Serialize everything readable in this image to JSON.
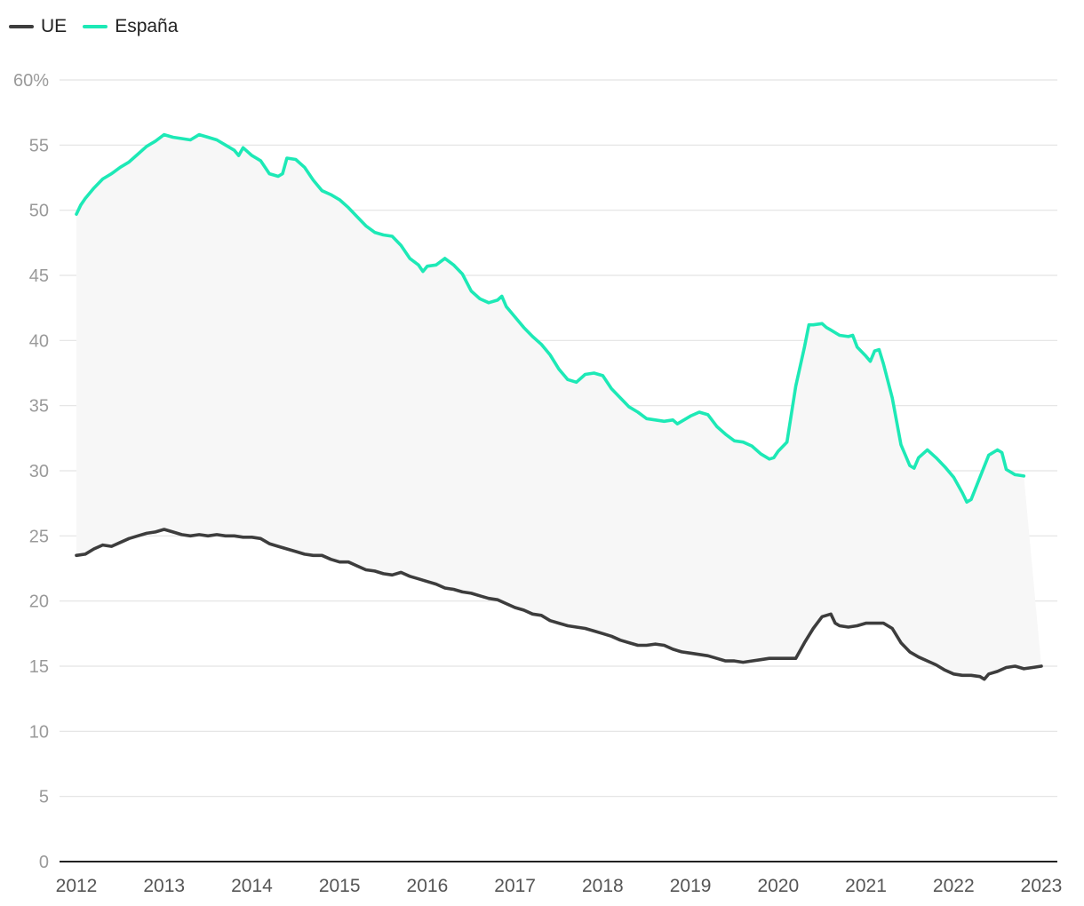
{
  "chart_data": {
    "type": "line",
    "title": "",
    "xlabel": "",
    "ylabel": "",
    "ylim": [
      0,
      60
    ],
    "xlim": [
      2012,
      2023
    ],
    "y_ticks": [
      0,
      5,
      10,
      15,
      20,
      25,
      30,
      35,
      40,
      45,
      50,
      55,
      60
    ],
    "y_tick_labels": [
      "0",
      "5",
      "10",
      "15",
      "20",
      "25",
      "30",
      "35",
      "40",
      "45",
      "50",
      "55",
      "60%"
    ],
    "x_ticks": [
      2012,
      2013,
      2014,
      2015,
      2016,
      2017,
      2018,
      2019,
      2020,
      2021,
      2022,
      2023
    ],
    "x_tick_labels": [
      "2012",
      "2013",
      "2014",
      "2015",
      "2016",
      "2017",
      "2018",
      "2019",
      "2020",
      "2021",
      "2022",
      "2023"
    ],
    "grid": true,
    "legend_position": "top-left",
    "fill_between_series": true,
    "fill_color": "#f7f7f7",
    "series": [
      {
        "name": "UE",
        "color": "#3d3d3d",
        "points": [
          [
            2012.0,
            23.5
          ],
          [
            2012.1,
            23.6
          ],
          [
            2012.2,
            24.0
          ],
          [
            2012.3,
            24.3
          ],
          [
            2012.4,
            24.2
          ],
          [
            2012.5,
            24.5
          ],
          [
            2012.6,
            24.8
          ],
          [
            2012.7,
            25.0
          ],
          [
            2012.8,
            25.2
          ],
          [
            2012.9,
            25.3
          ],
          [
            2013.0,
            25.5
          ],
          [
            2013.1,
            25.3
          ],
          [
            2013.2,
            25.1
          ],
          [
            2013.3,
            25.0
          ],
          [
            2013.4,
            25.1
          ],
          [
            2013.5,
            25.0
          ],
          [
            2013.6,
            25.1
          ],
          [
            2013.7,
            25.0
          ],
          [
            2013.8,
            25.0
          ],
          [
            2013.9,
            24.9
          ],
          [
            2014.0,
            24.9
          ],
          [
            2014.1,
            24.8
          ],
          [
            2014.2,
            24.4
          ],
          [
            2014.3,
            24.2
          ],
          [
            2014.4,
            24.0
          ],
          [
            2014.5,
            23.8
          ],
          [
            2014.6,
            23.6
          ],
          [
            2014.7,
            23.5
          ],
          [
            2014.8,
            23.5
          ],
          [
            2014.9,
            23.2
          ],
          [
            2015.0,
            23.0
          ],
          [
            2015.1,
            23.0
          ],
          [
            2015.2,
            22.7
          ],
          [
            2015.3,
            22.4
          ],
          [
            2015.4,
            22.3
          ],
          [
            2015.5,
            22.1
          ],
          [
            2015.6,
            22.0
          ],
          [
            2015.7,
            22.2
          ],
          [
            2015.8,
            21.9
          ],
          [
            2015.9,
            21.7
          ],
          [
            2016.0,
            21.5
          ],
          [
            2016.1,
            21.3
          ],
          [
            2016.2,
            21.0
          ],
          [
            2016.3,
            20.9
          ],
          [
            2016.4,
            20.7
          ],
          [
            2016.5,
            20.6
          ],
          [
            2016.6,
            20.4
          ],
          [
            2016.7,
            20.2
          ],
          [
            2016.8,
            20.1
          ],
          [
            2016.9,
            19.8
          ],
          [
            2017.0,
            19.5
          ],
          [
            2017.1,
            19.3
          ],
          [
            2017.2,
            19.0
          ],
          [
            2017.3,
            18.9
          ],
          [
            2017.4,
            18.5
          ],
          [
            2017.5,
            18.3
          ],
          [
            2017.6,
            18.1
          ],
          [
            2017.7,
            18.0
          ],
          [
            2017.8,
            17.9
          ],
          [
            2017.9,
            17.7
          ],
          [
            2018.0,
            17.5
          ],
          [
            2018.1,
            17.3
          ],
          [
            2018.2,
            17.0
          ],
          [
            2018.3,
            16.8
          ],
          [
            2018.4,
            16.6
          ],
          [
            2018.5,
            16.6
          ],
          [
            2018.6,
            16.7
          ],
          [
            2018.7,
            16.6
          ],
          [
            2018.8,
            16.3
          ],
          [
            2018.9,
            16.1
          ],
          [
            2019.0,
            16.0
          ],
          [
            2019.1,
            15.9
          ],
          [
            2019.2,
            15.8
          ],
          [
            2019.3,
            15.6
          ],
          [
            2019.4,
            15.4
          ],
          [
            2019.5,
            15.4
          ],
          [
            2019.6,
            15.3
          ],
          [
            2019.7,
            15.4
          ],
          [
            2019.8,
            15.5
          ],
          [
            2019.9,
            15.6
          ],
          [
            2020.0,
            15.6
          ],
          [
            2020.1,
            15.6
          ],
          [
            2020.2,
            15.6
          ],
          [
            2020.3,
            16.8
          ],
          [
            2020.4,
            17.9
          ],
          [
            2020.5,
            18.8
          ],
          [
            2020.6,
            19.0
          ],
          [
            2020.65,
            18.3
          ],
          [
            2020.7,
            18.1
          ],
          [
            2020.8,
            18.0
          ],
          [
            2020.9,
            18.1
          ],
          [
            2021.0,
            18.3
          ],
          [
            2021.1,
            18.3
          ],
          [
            2021.2,
            18.3
          ],
          [
            2021.3,
            17.9
          ],
          [
            2021.4,
            16.8
          ],
          [
            2021.5,
            16.1
          ],
          [
            2021.6,
            15.7
          ],
          [
            2021.7,
            15.4
          ],
          [
            2021.8,
            15.1
          ],
          [
            2021.9,
            14.7
          ],
          [
            2022.0,
            14.4
          ],
          [
            2022.1,
            14.3
          ],
          [
            2022.2,
            14.3
          ],
          [
            2022.3,
            14.2
          ],
          [
            2022.35,
            14.0
          ],
          [
            2022.4,
            14.4
          ],
          [
            2022.5,
            14.6
          ],
          [
            2022.6,
            14.9
          ],
          [
            2022.7,
            15.0
          ],
          [
            2022.8,
            14.8
          ],
          [
            2022.9,
            14.9
          ],
          [
            2023.0,
            15.0
          ]
        ]
      },
      {
        "name": "España",
        "color": "#1de9b6",
        "points": [
          [
            2012.0,
            49.7
          ],
          [
            2012.05,
            50.4
          ],
          [
            2012.1,
            50.9
          ],
          [
            2012.2,
            51.7
          ],
          [
            2012.3,
            52.4
          ],
          [
            2012.4,
            52.8
          ],
          [
            2012.5,
            53.3
          ],
          [
            2012.6,
            53.7
          ],
          [
            2012.7,
            54.3
          ],
          [
            2012.8,
            54.9
          ],
          [
            2012.9,
            55.3
          ],
          [
            2013.0,
            55.8
          ],
          [
            2013.1,
            55.6
          ],
          [
            2013.2,
            55.5
          ],
          [
            2013.3,
            55.4
          ],
          [
            2013.4,
            55.8
          ],
          [
            2013.5,
            55.6
          ],
          [
            2013.6,
            55.4
          ],
          [
            2013.7,
            55.0
          ],
          [
            2013.8,
            54.6
          ],
          [
            2013.85,
            54.2
          ],
          [
            2013.9,
            54.8
          ],
          [
            2014.0,
            54.2
          ],
          [
            2014.1,
            53.8
          ],
          [
            2014.2,
            52.8
          ],
          [
            2014.3,
            52.6
          ],
          [
            2014.35,
            52.8
          ],
          [
            2014.4,
            54.0
          ],
          [
            2014.5,
            53.9
          ],
          [
            2014.6,
            53.3
          ],
          [
            2014.7,
            52.3
          ],
          [
            2014.8,
            51.5
          ],
          [
            2014.9,
            51.2
          ],
          [
            2015.0,
            50.8
          ],
          [
            2015.1,
            50.2
          ],
          [
            2015.2,
            49.5
          ],
          [
            2015.3,
            48.8
          ],
          [
            2015.4,
            48.3
          ],
          [
            2015.5,
            48.1
          ],
          [
            2015.6,
            48.0
          ],
          [
            2015.7,
            47.3
          ],
          [
            2015.8,
            46.3
          ],
          [
            2015.9,
            45.8
          ],
          [
            2015.95,
            45.3
          ],
          [
            2016.0,
            45.7
          ],
          [
            2016.1,
            45.8
          ],
          [
            2016.2,
            46.3
          ],
          [
            2016.3,
            45.8
          ],
          [
            2016.4,
            45.1
          ],
          [
            2016.5,
            43.8
          ],
          [
            2016.6,
            43.2
          ],
          [
            2016.7,
            42.9
          ],
          [
            2016.8,
            43.1
          ],
          [
            2016.85,
            43.4
          ],
          [
            2016.9,
            42.6
          ],
          [
            2017.0,
            41.8
          ],
          [
            2017.1,
            41.0
          ],
          [
            2017.2,
            40.3
          ],
          [
            2017.3,
            39.7
          ],
          [
            2017.4,
            38.9
          ],
          [
            2017.5,
            37.8
          ],
          [
            2017.6,
            37.0
          ],
          [
            2017.7,
            36.8
          ],
          [
            2017.8,
            37.4
          ],
          [
            2017.9,
            37.5
          ],
          [
            2018.0,
            37.3
          ],
          [
            2018.1,
            36.3
          ],
          [
            2018.2,
            35.6
          ],
          [
            2018.3,
            34.9
          ],
          [
            2018.4,
            34.5
          ],
          [
            2018.5,
            34.0
          ],
          [
            2018.6,
            33.9
          ],
          [
            2018.7,
            33.8
          ],
          [
            2018.8,
            33.9
          ],
          [
            2018.85,
            33.6
          ],
          [
            2018.9,
            33.8
          ],
          [
            2019.0,
            34.2
          ],
          [
            2019.1,
            34.5
          ],
          [
            2019.2,
            34.3
          ],
          [
            2019.3,
            33.4
          ],
          [
            2019.4,
            32.8
          ],
          [
            2019.5,
            32.3
          ],
          [
            2019.6,
            32.2
          ],
          [
            2019.7,
            31.9
          ],
          [
            2019.8,
            31.3
          ],
          [
            2019.9,
            30.9
          ],
          [
            2019.95,
            31.0
          ],
          [
            2020.0,
            31.5
          ],
          [
            2020.1,
            32.2
          ],
          [
            2020.2,
            36.5
          ],
          [
            2020.3,
            39.5
          ],
          [
            2020.35,
            41.2
          ],
          [
            2020.4,
            41.2
          ],
          [
            2020.5,
            41.3
          ],
          [
            2020.55,
            41.0
          ],
          [
            2020.6,
            40.8
          ],
          [
            2020.7,
            40.4
          ],
          [
            2020.8,
            40.3
          ],
          [
            2020.85,
            40.4
          ],
          [
            2020.9,
            39.5
          ],
          [
            2021.0,
            38.8
          ],
          [
            2021.05,
            38.4
          ],
          [
            2021.1,
            39.2
          ],
          [
            2021.15,
            39.3
          ],
          [
            2021.2,
            38.2
          ],
          [
            2021.3,
            35.6
          ],
          [
            2021.4,
            32.0
          ],
          [
            2021.5,
            30.4
          ],
          [
            2021.55,
            30.2
          ],
          [
            2021.6,
            31.0
          ],
          [
            2021.7,
            31.6
          ],
          [
            2021.8,
            31.0
          ],
          [
            2021.9,
            30.3
          ],
          [
            2022.0,
            29.5
          ],
          [
            2022.1,
            28.3
          ],
          [
            2022.15,
            27.6
          ],
          [
            2022.2,
            27.8
          ],
          [
            2022.3,
            29.5
          ],
          [
            2022.4,
            31.2
          ],
          [
            2022.5,
            31.6
          ],
          [
            2022.55,
            31.4
          ],
          [
            2022.6,
            30.1
          ],
          [
            2022.7,
            29.7
          ],
          [
            2022.8,
            29.6
          ]
        ]
      }
    ]
  }
}
